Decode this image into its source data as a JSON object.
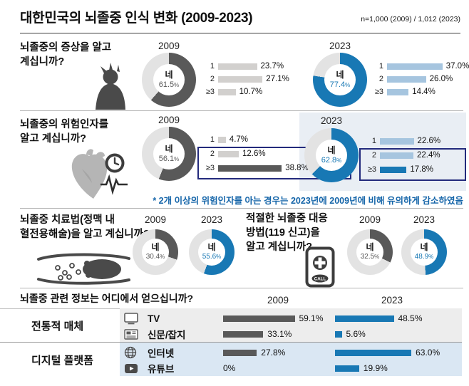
{
  "header": {
    "title": "대한민국의 뇌졸중 인식 변화 (2009-2023)",
    "sample_note": "n=1,000 (2009) / 1,012 (2023)"
  },
  "percent_sign": "%",
  "colors": {
    "dark_gray": "#595959",
    "track_gray": "#e3e3e3",
    "light_gray_bar": "#d2d0ce",
    "blue": "#1878b4",
    "light_blue_bar": "#a6c5df",
    "panel_blue_bg": "#e9eef4",
    "highlight_box_navy": "#232a7c",
    "note_blue": "#1565a9",
    "band_gray_bg": "#ededed",
    "band_blue_bg": "#dae7f3"
  },
  "icons": {
    "symptoms": "headache-person-icon",
    "risk": "heart-clock-icon",
    "treatment": "blood-vessel-icon",
    "response": "emergency-call-icon",
    "tv": "tv-icon",
    "newspaper": "newspaper-icon",
    "internet": "globe-icon",
    "youtube": "youtube-icon"
  },
  "chart_data": [
    {
      "id": "symptom-awareness",
      "type": "donut+hbar",
      "question": "뇌졸중의 증상을 알고\n계십니까?",
      "bar_categories": [
        "1",
        "2",
        "≥3"
      ],
      "series": [
        {
          "year": "2009",
          "yes_label": "네",
          "yes_pct": 61.5,
          "yes_text": "61.5",
          "color": "#595959",
          "value_color": "#595959",
          "bar_values": [
            23.7,
            27.1,
            10.7
          ],
          "bar_texts": [
            "23.7%",
            "27.1%",
            "10.7%"
          ],
          "bar_colors": [
            "#d2d0ce",
            "#d2d0ce",
            "#d2d0ce"
          ]
        },
        {
          "year": "2023",
          "yes_label": "네",
          "yes_pct": 77.4,
          "yes_text": "77.4",
          "color": "#1878b4",
          "value_color": "#1878b4",
          "bar_values": [
            37.0,
            26.0,
            14.4
          ],
          "bar_texts": [
            "37.0%",
            "26.0%",
            "14.4%"
          ],
          "bar_colors": [
            "#a6c5df",
            "#a6c5df",
            "#a6c5df"
          ]
        }
      ]
    },
    {
      "id": "risk-factor-awareness",
      "type": "donut+hbar",
      "question": "뇌졸중의 위험인자를\n알고 계십니까?",
      "bar_categories": [
        "1",
        "2",
        "≥3"
      ],
      "series": [
        {
          "year": "2009",
          "yes_label": "네",
          "yes_pct": 56.1,
          "yes_text": "56.1",
          "color": "#595959",
          "value_color": "#595959",
          "bar_values": [
            4.7,
            12.6,
            38.8
          ],
          "bar_texts": [
            "4.7%",
            "12.6%",
            "38.8%"
          ],
          "bar_colors": [
            "#d2d0ce",
            "#d2d0ce",
            "#595959"
          ]
        },
        {
          "year": "2023",
          "yes_label": "네",
          "yes_pct": 62.8,
          "yes_text": "62.8",
          "color": "#1878b4",
          "value_color": "#1878b4",
          "bar_values": [
            22.6,
            22.4,
            17.8
          ],
          "bar_texts": [
            "22.6%",
            "22.4%",
            "17.8%"
          ],
          "bar_colors": [
            "#a6c5df",
            "#a6c5df",
            "#1878b4"
          ]
        }
      ],
      "note": "* 2개 이상의 위험인자를 아는 경우는 2023년에 2009년에 비해 유의하게 감소하였음"
    },
    {
      "id": "treatment-awareness",
      "type": "donut",
      "question": "뇌졸중 치료법(정맥 내\n혈전용해술)을 알고 계십니까?",
      "series": [
        {
          "year": "2009",
          "yes_label": "네",
          "yes_pct": 30.4,
          "yes_text": "30.4",
          "color": "#595959",
          "value_color": "#595959"
        },
        {
          "year": "2023",
          "yes_label": "네",
          "yes_pct": 55.6,
          "yes_text": "55.6",
          "color": "#1878b4",
          "value_color": "#1878b4"
        }
      ]
    },
    {
      "id": "response-awareness",
      "type": "donut",
      "question": "적절한 뇌졸중 대응\n방법(119 신고)을\n알고 계십니까?",
      "phone_badge": "CALL",
      "series": [
        {
          "year": "2009",
          "yes_label": "네",
          "yes_pct": 32.5,
          "yes_text": "32.5",
          "color": "#595959",
          "value_color": "#595959"
        },
        {
          "year": "2023",
          "yes_label": "네",
          "yes_pct": 48.9,
          "yes_text": "48.9",
          "color": "#1878b4",
          "value_color": "#1878b4"
        }
      ]
    },
    {
      "id": "info-sources",
      "type": "grouped_hbar",
      "question": "뇌졸중 관련 정보는 어디에서 얻으십니까?",
      "col_years": [
        "2009",
        "2023"
      ],
      "col_colors": [
        "#595959",
        "#1878b4"
      ],
      "groups": [
        {
          "label": "전통적 매체",
          "rows": [
            {
              "icon": "tv-icon",
              "label": "TV",
              "values": [
                59.1,
                48.5
              ],
              "texts": [
                "59.1%",
                "48.5%"
              ]
            },
            {
              "icon": "newspaper-icon",
              "label": "신문/잡지",
              "values": [
                33.1,
                5.6
              ],
              "texts": [
                "33.1%",
                "5.6%"
              ]
            }
          ]
        },
        {
          "label": "디지털 플랫폼",
          "rows": [
            {
              "icon": "globe-icon",
              "label": "인터넷",
              "values": [
                27.8,
                63.0
              ],
              "texts": [
                "27.8%",
                "63.0%"
              ]
            },
            {
              "icon": "youtube-icon",
              "label": "유튜브",
              "values": [
                0,
                19.9
              ],
              "texts": [
                "0%",
                "19.9%"
              ]
            }
          ]
        }
      ]
    }
  ]
}
